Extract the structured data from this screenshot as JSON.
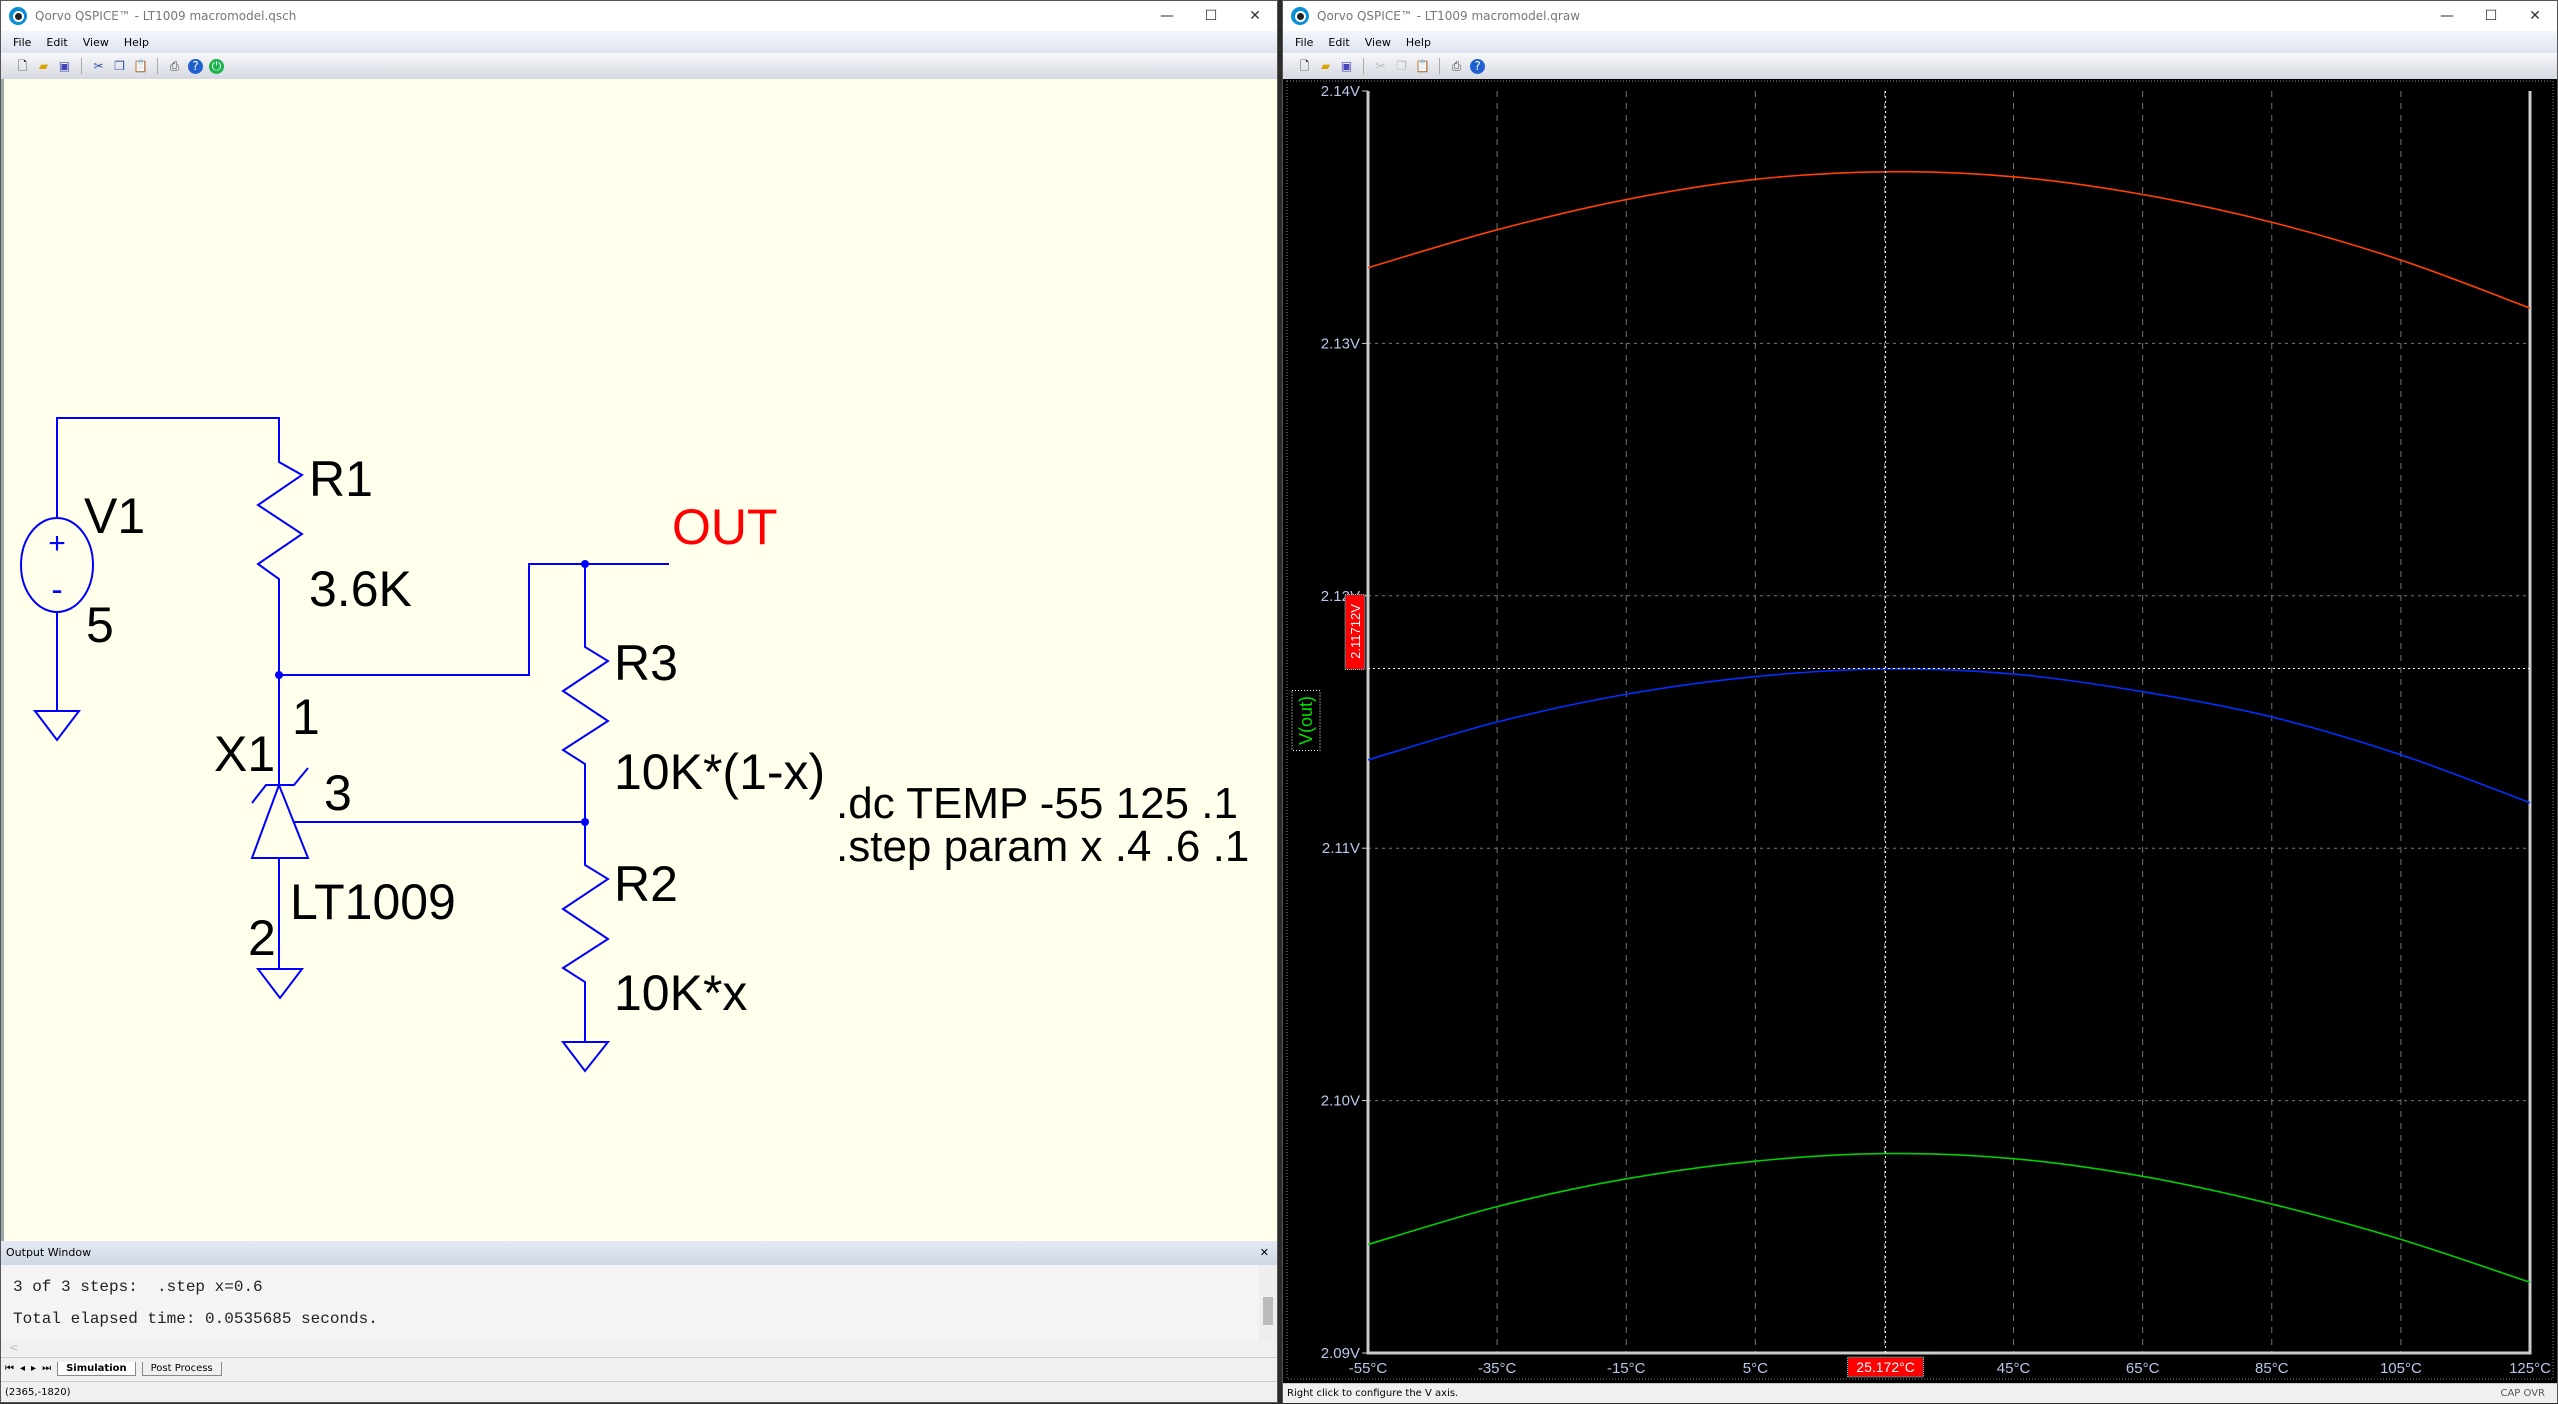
{
  "schematic_window": {
    "title": "Qorvo QSPICE™ - LT1009 macromodel.qsch",
    "menu": [
      "File",
      "Edit",
      "View",
      "Help"
    ],
    "toolbar_icons": [
      "new-icon",
      "open-icon",
      "save-icon",
      "cut-icon",
      "copy-icon",
      "paste-icon",
      "print-icon",
      "help-icon",
      "run-icon"
    ],
    "schematic": {
      "V1": {
        "name": "V1",
        "value": "5",
        "plus": "+",
        "minus": "-"
      },
      "R1": {
        "name": "R1",
        "value": "3.6K"
      },
      "R2": {
        "name": "R2",
        "value": "10K*x"
      },
      "R3": {
        "name": "R3",
        "value": "10K*(1-x)"
      },
      "X1": {
        "name": "X1",
        "model": "LT1009",
        "pin1": "1",
        "pin2": "2",
        "pin3": "3"
      },
      "net_label": "OUT",
      "directives": [
        ".dc TEMP -55 125 .1",
        ".step param x .4 .6 .1"
      ],
      "wire_color": "#0000ff",
      "text_color": "#000000",
      "net_label_color": "#ff0000"
    },
    "output_window": {
      "title": "Output Window",
      "lines": [
        "3 of 3 steps:  .step x=0.6",
        "Total elapsed time: 0.0535685 seconds."
      ],
      "tabs": [
        "Simulation",
        "Post Process"
      ],
      "active_tab": "Simulation"
    },
    "status": "(2365,-1820)"
  },
  "waveform_window": {
    "title": "Qorvo QSPICE™ - LT1009 macromodel.qraw",
    "menu": [
      "File",
      "Edit",
      "View",
      "Help"
    ],
    "status": "Right click to configure the V axis.",
    "caps": "CAP",
    "ovr": "OVR",
    "trace_label": "V(out)",
    "cursor_y_label": "2.11712V",
    "cursor_x_label": "25.172°C"
  },
  "chart_data": {
    "type": "line",
    "xlabel": "",
    "ylabel": "V(out)",
    "xlim": [
      -55,
      125
    ],
    "ylim": [
      2.09,
      2.14
    ],
    "x_ticks": [
      "-55°C",
      "-35°C",
      "-15°C",
      "5°C",
      "25°C",
      "45°C",
      "65°C",
      "85°C",
      "105°C",
      "125°C"
    ],
    "x_tick_values": [
      -55,
      -35,
      -15,
      5,
      25,
      45,
      65,
      85,
      105,
      125
    ],
    "y_ticks": [
      "2.14V",
      "2.13V",
      "2.12V",
      "2.11V",
      "2.10V",
      "2.09V"
    ],
    "y_tick_values": [
      2.14,
      2.13,
      2.12,
      2.11,
      2.1,
      2.09
    ],
    "grid": true,
    "x": [
      -55,
      -35,
      -15,
      5,
      25,
      45,
      65,
      85,
      105,
      125
    ],
    "series": [
      {
        "color": "#ff4000",
        "values": [
          2.133,
          2.1345,
          2.1357,
          2.1365,
          2.1368,
          2.1366,
          2.1359,
          2.1348,
          2.1333,
          2.1314
        ]
      },
      {
        "color": "#0030ff",
        "values": [
          2.1135,
          2.115,
          2.1161,
          2.1168,
          2.1171,
          2.1169,
          2.1162,
          2.1152,
          2.1137,
          2.1118
        ]
      },
      {
        "color": "#00d000",
        "values": [
          2.0943,
          2.0958,
          2.0969,
          2.0976,
          2.0979,
          2.0977,
          2.097,
          2.0959,
          2.0945,
          2.0928
        ]
      }
    ],
    "cursor": {
      "x": 25.172,
      "y": 2.11712
    }
  }
}
